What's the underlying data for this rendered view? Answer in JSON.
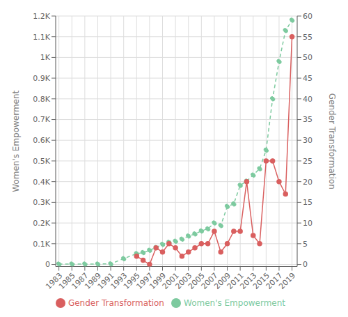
{
  "chart_data": {
    "type": "line",
    "ylabel": "Women's Empowerment",
    "y2label": "Gender Transformation",
    "x": [
      1983,
      1985,
      1987,
      1989,
      1991,
      1993,
      1995,
      1996,
      1997,
      1998,
      1999,
      2000,
      2001,
      2002,
      2003,
      2004,
      2005,
      2006,
      2007,
      2008,
      2009,
      2010,
      2011,
      2012,
      2013,
      2014,
      2015,
      2016,
      2017,
      2018,
      2019
    ],
    "series": [
      {
        "name": "Women's Empowerment",
        "color": "#7dca9f",
        "marker": "circle",
        "line_style": "dashed",
        "axis": "y",
        "values": [
          2,
          2,
          2,
          2,
          3,
          28,
          52,
          57,
          68,
          82,
          97,
          107,
          112,
          122,
          137,
          147,
          162,
          172,
          200,
          188,
          280,
          292,
          382,
          402,
          432,
          462,
          552,
          800,
          980,
          1130,
          1180
        ]
      },
      {
        "name": "Gender Transformation",
        "color": "#d95f5f",
        "marker": "circle",
        "line_style": "solid",
        "axis": "y2",
        "values": [
          null,
          null,
          null,
          null,
          null,
          null,
          2,
          1,
          0,
          4,
          3,
          5,
          4,
          2,
          3,
          4,
          5,
          5,
          8,
          3,
          5,
          8,
          8,
          20,
          7,
          5,
          25,
          25,
          20,
          17,
          55
        ]
      }
    ],
    "xlim": [
      1982.5,
      2019.8
    ],
    "xticks": [
      1983,
      1985,
      1987,
      1989,
      1991,
      1993,
      1995,
      1997,
      1999,
      2001,
      2003,
      2005,
      2007,
      2009,
      2011,
      2013,
      2015,
      2017,
      2019
    ],
    "ylim": [
      -10,
      1200
    ],
    "yticks": [
      0,
      {
        "value": 100,
        "label": "0.1K"
      },
      {
        "value": 200,
        "label": "0.2K"
      },
      {
        "value": 300,
        "label": "0.3K"
      },
      {
        "value": 400,
        "label": "0.4K"
      },
      {
        "value": 500,
        "label": "0.5K"
      },
      {
        "value": 600,
        "label": "0.6K"
      },
      {
        "value": 700,
        "label": "0.7K"
      },
      {
        "value": 800,
        "label": "0.8K"
      },
      {
        "value": 900,
        "label": "0.9K"
      },
      {
        "value": 1000,
        "label": "1K"
      },
      {
        "value": 1100,
        "label": "1.1K"
      },
      {
        "value": 1200,
        "label": "1.2K"
      }
    ],
    "y2lim": [
      -0.5,
      60
    ],
    "y2ticks": [
      0,
      5,
      10,
      15,
      20,
      25,
      30,
      35,
      40,
      45,
      50,
      55,
      60
    ],
    "grid": true,
    "legend": "bottom"
  }
}
